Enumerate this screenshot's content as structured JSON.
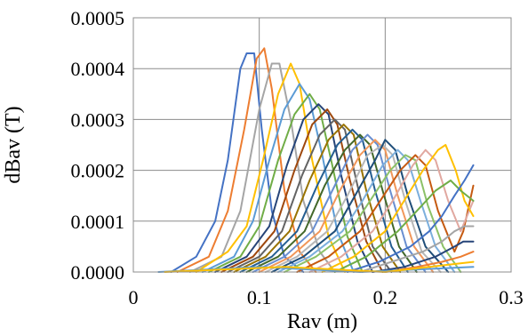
{
  "chart_data": {
    "type": "line",
    "title": "",
    "xlabel": "Rav (m)",
    "ylabel": "dBav (T)",
    "xlim": [
      0,
      0.3
    ],
    "ylim": [
      0,
      0.0005
    ],
    "x_ticks": [
      0,
      0.1,
      0.2,
      0.3
    ],
    "x_tick_labels": [
      "0",
      "0.1",
      "0.2",
      "0.3"
    ],
    "y_ticks": [
      0,
      0.0001,
      0.0002,
      0.0003,
      0.0004,
      0.0005
    ],
    "y_tick_labels": [
      "0.0000",
      "0.0001",
      "0.0002",
      "0.0003",
      "0.0004",
      "0.0005"
    ],
    "grid": true,
    "legend": false,
    "series": [
      {
        "color": "#4472C4",
        "points": [
          [
            0.03,
            0.0
          ],
          [
            0.05,
            3e-05
          ],
          [
            0.065,
            0.0001
          ],
          [
            0.075,
            0.00022
          ],
          [
            0.085,
            0.0004
          ],
          [
            0.09,
            0.00043
          ],
          [
            0.096,
            0.00043
          ],
          [
            0.102,
            0.00028
          ],
          [
            0.11,
            0.00012
          ],
          [
            0.12,
            3e-05
          ],
          [
            0.135,
            0.0
          ]
        ]
      },
      {
        "color": "#ED7D31",
        "points": [
          [
            0.035,
            0.0
          ],
          [
            0.06,
            3e-05
          ],
          [
            0.075,
            0.00012
          ],
          [
            0.088,
            0.00028
          ],
          [
            0.098,
            0.00042
          ],
          [
            0.104,
            0.00044
          ],
          [
            0.11,
            0.00036
          ],
          [
            0.12,
            0.00016
          ],
          [
            0.132,
            4e-05
          ],
          [
            0.145,
            0.0
          ]
        ]
      },
      {
        "color": "#A5A5A5",
        "points": [
          [
            0.045,
            0.0
          ],
          [
            0.07,
            3e-05
          ],
          [
            0.085,
            0.00012
          ],
          [
            0.1,
            0.00032
          ],
          [
            0.11,
            0.00041
          ],
          [
            0.116,
            0.00041
          ],
          [
            0.125,
            0.0003
          ],
          [
            0.135,
            0.00014
          ],
          [
            0.148,
            4e-05
          ],
          [
            0.16,
            0.0
          ]
        ]
      },
      {
        "color": "#FFC000",
        "points": [
          [
            0.05,
            0.0
          ],
          [
            0.075,
            4e-05
          ],
          [
            0.09,
            9e-05
          ],
          [
            0.103,
            0.00022
          ],
          [
            0.115,
            0.00035
          ],
          [
            0.125,
            0.00041
          ],
          [
            0.132,
            0.00037
          ],
          [
            0.142,
            0.00022
          ],
          [
            0.155,
            7e-05
          ],
          [
            0.168,
            0.0
          ]
        ]
      },
      {
        "color": "#5B9BD5",
        "points": [
          [
            0.055,
            0.0
          ],
          [
            0.08,
            3e-05
          ],
          [
            0.095,
            0.0001
          ],
          [
            0.108,
            0.00022
          ],
          [
            0.12,
            0.00032
          ],
          [
            0.132,
            0.00037
          ],
          [
            0.14,
            0.00034
          ],
          [
            0.15,
            0.00023
          ],
          [
            0.162,
            8e-05
          ],
          [
            0.175,
            0.0
          ]
        ]
      },
      {
        "color": "#70AD47",
        "points": [
          [
            0.06,
            0.0
          ],
          [
            0.085,
            3e-05
          ],
          [
            0.1,
            9e-05
          ],
          [
            0.115,
            0.00022
          ],
          [
            0.128,
            0.00031
          ],
          [
            0.14,
            0.00035
          ],
          [
            0.148,
            0.00032
          ],
          [
            0.158,
            0.00021
          ],
          [
            0.17,
            7e-05
          ],
          [
            0.182,
            0.0
          ]
        ]
      },
      {
        "color": "#264478",
        "points": [
          [
            0.065,
            0.0
          ],
          [
            0.09,
            3e-05
          ],
          [
            0.108,
            9e-05
          ],
          [
            0.122,
            0.00021
          ],
          [
            0.135,
            0.0003
          ],
          [
            0.147,
            0.00033
          ],
          [
            0.155,
            0.00031
          ],
          [
            0.165,
            0.00019
          ],
          [
            0.178,
            6e-05
          ],
          [
            0.19,
            0.0
          ]
        ]
      },
      {
        "color": "#9E480E",
        "points": [
          [
            0.07,
            0.0
          ],
          [
            0.095,
            3e-05
          ],
          [
            0.112,
            8e-05
          ],
          [
            0.128,
            0.0002
          ],
          [
            0.142,
            0.00029
          ],
          [
            0.154,
            0.00032
          ],
          [
            0.162,
            0.00029
          ],
          [
            0.172,
            0.00018
          ],
          [
            0.185,
            6e-05
          ],
          [
            0.198,
            0.0
          ]
        ]
      },
      {
        "color": "#636363",
        "points": [
          [
            0.075,
            0.0
          ],
          [
            0.1,
            3e-05
          ],
          [
            0.118,
            8e-05
          ],
          [
            0.134,
            0.00019
          ],
          [
            0.148,
            0.00027
          ],
          [
            0.16,
            0.0003
          ],
          [
            0.168,
            0.00028
          ],
          [
            0.178,
            0.00017
          ],
          [
            0.19,
            5e-05
          ],
          [
            0.205,
            0.0
          ]
        ]
      },
      {
        "color": "#997300",
        "points": [
          [
            0.08,
            0.0
          ],
          [
            0.105,
            3e-05
          ],
          [
            0.124,
            8e-05
          ],
          [
            0.14,
            0.00018
          ],
          [
            0.155,
            0.00026
          ],
          [
            0.167,
            0.00029
          ],
          [
            0.175,
            0.00027
          ],
          [
            0.185,
            0.00016
          ],
          [
            0.198,
            5e-05
          ],
          [
            0.212,
            0.0
          ]
        ]
      },
      {
        "color": "#255E91",
        "points": [
          [
            0.085,
            0.0
          ],
          [
            0.11,
            3e-05
          ],
          [
            0.13,
            8e-05
          ],
          [
            0.146,
            0.00017
          ],
          [
            0.162,
            0.00025
          ],
          [
            0.174,
            0.00028
          ],
          [
            0.182,
            0.00026
          ],
          [
            0.192,
            0.00016
          ],
          [
            0.205,
            5e-05
          ],
          [
            0.218,
            0.0
          ]
        ]
      },
      {
        "color": "#43682B",
        "points": [
          [
            0.09,
            0.0
          ],
          [
            0.115,
            3e-05
          ],
          [
            0.136,
            8e-05
          ],
          [
            0.152,
            0.00017
          ],
          [
            0.168,
            0.00024
          ],
          [
            0.18,
            0.00027
          ],
          [
            0.188,
            0.00025
          ],
          [
            0.198,
            0.00016
          ],
          [
            0.211,
            5e-05
          ],
          [
            0.225,
            0.0
          ]
        ]
      },
      {
        "color": "#698ED0",
        "points": [
          [
            0.095,
            0.0
          ],
          [
            0.12,
            3e-05
          ],
          [
            0.142,
            8e-05
          ],
          [
            0.158,
            0.00016
          ],
          [
            0.174,
            0.00024
          ],
          [
            0.186,
            0.00027
          ],
          [
            0.194,
            0.00025
          ],
          [
            0.204,
            0.00016
          ],
          [
            0.217,
            5e-05
          ],
          [
            0.232,
            0.0
          ]
        ]
      },
      {
        "color": "#F1975A",
        "points": [
          [
            0.1,
            0.0
          ],
          [
            0.125,
            3e-05
          ],
          [
            0.148,
            8e-05
          ],
          [
            0.164,
            0.00016
          ],
          [
            0.18,
            0.00023
          ],
          [
            0.192,
            0.00026
          ],
          [
            0.2,
            0.00024
          ],
          [
            0.21,
            0.00015
          ],
          [
            0.223,
            5e-05
          ],
          [
            0.238,
            0.0
          ]
        ]
      },
      {
        "color": "#B7B7B7",
        "points": [
          [
            0.105,
            0.0
          ],
          [
            0.13,
            3e-05
          ],
          [
            0.154,
            8e-05
          ],
          [
            0.17,
            0.00015
          ],
          [
            0.186,
            0.00023
          ],
          [
            0.198,
            0.00025
          ],
          [
            0.206,
            0.00023
          ],
          [
            0.216,
            0.00014
          ],
          [
            0.229,
            4e-05
          ],
          [
            0.244,
            0.0
          ]
        ]
      },
      {
        "color": "#1F4E79",
        "points": [
          [
            0.11,
            0.0
          ],
          [
            0.135,
            3e-05
          ],
          [
            0.16,
            8e-05
          ],
          [
            0.176,
            0.00015
          ],
          [
            0.192,
            0.00022
          ],
          [
            0.2,
            0.00026
          ],
          [
            0.208,
            0.00024
          ],
          [
            0.218,
            0.00015
          ],
          [
            0.232,
            5e-05
          ],
          [
            0.25,
            0.0
          ]
        ]
      },
      {
        "color": "#7CAFDD",
        "points": [
          [
            0.115,
            0.0
          ],
          [
            0.14,
            3e-05
          ],
          [
            0.166,
            8e-05
          ],
          [
            0.182,
            0.00014
          ],
          [
            0.198,
            0.00021
          ],
          [
            0.21,
            0.00024
          ],
          [
            0.218,
            0.00022
          ],
          [
            0.228,
            0.00014
          ],
          [
            0.24,
            5e-05
          ],
          [
            0.255,
            0.0
          ]
        ]
      },
      {
        "color": "#8CC168",
        "points": [
          [
            0.12,
            0.0
          ],
          [
            0.145,
            3e-05
          ],
          [
            0.172,
            8e-05
          ],
          [
            0.188,
            0.00014
          ],
          [
            0.204,
            0.0002
          ],
          [
            0.216,
            0.00023
          ],
          [
            0.224,
            0.00022
          ],
          [
            0.234,
            0.00013
          ],
          [
            0.246,
            5e-05
          ],
          [
            0.26,
            0.0
          ]
        ]
      },
      {
        "color": "#C55A11",
        "points": [
          [
            0.13,
            0.0
          ],
          [
            0.155,
            3e-05
          ],
          [
            0.18,
            8e-05
          ],
          [
            0.196,
            0.00014
          ],
          [
            0.212,
            0.0002
          ],
          [
            0.224,
            0.00023
          ],
          [
            0.232,
            0.00021
          ],
          [
            0.242,
            0.00012
          ],
          [
            0.255,
            4e-05
          ],
          [
            0.262,
            8e-05
          ],
          [
            0.27,
            0.00017
          ]
        ]
      },
      {
        "color": "#E1A8A0",
        "points": [
          [
            0.14,
            0.0
          ],
          [
            0.165,
            3e-05
          ],
          [
            0.19,
            8e-05
          ],
          [
            0.206,
            0.00014
          ],
          [
            0.222,
            0.00021
          ],
          [
            0.232,
            0.00024
          ],
          [
            0.24,
            0.00022
          ],
          [
            0.25,
            0.00014
          ],
          [
            0.26,
            8e-05
          ],
          [
            0.27,
            0.00014
          ]
        ]
      },
      {
        "color": "#FFC000",
        "points": [
          [
            0.15,
            0.0
          ],
          [
            0.175,
            3e-05
          ],
          [
            0.2,
            8e-05
          ],
          [
            0.215,
            0.00014
          ],
          [
            0.23,
            0.0002
          ],
          [
            0.242,
            0.00024
          ],
          [
            0.248,
            0.00025
          ],
          [
            0.256,
            0.0002
          ],
          [
            0.263,
            0.00014
          ],
          [
            0.27,
            0.00011
          ]
        ]
      },
      {
        "color": "#70AD47",
        "points": [
          [
            0.16,
            0.0
          ],
          [
            0.185,
            3e-05
          ],
          [
            0.21,
            8e-05
          ],
          [
            0.225,
            0.00012
          ],
          [
            0.24,
            0.00016
          ],
          [
            0.252,
            0.00018
          ],
          [
            0.26,
            0.00016
          ],
          [
            0.27,
            0.00014
          ]
        ]
      },
      {
        "color": "#4472C4",
        "points": [
          [
            0.17,
            0.0
          ],
          [
            0.195,
            2e-05
          ],
          [
            0.22,
            5e-05
          ],
          [
            0.235,
            8e-05
          ],
          [
            0.245,
            0.00011
          ],
          [
            0.255,
            0.00015
          ],
          [
            0.263,
            0.00018
          ],
          [
            0.27,
            0.00021
          ]
        ]
      },
      {
        "color": "#A5A5A5",
        "points": [
          [
            0.18,
            0.0
          ],
          [
            0.205,
            2e-05
          ],
          [
            0.23,
            4e-05
          ],
          [
            0.245,
            6e-05
          ],
          [
            0.255,
            8e-05
          ],
          [
            0.263,
            9e-05
          ],
          [
            0.27,
            9e-05
          ]
        ]
      },
      {
        "color": "#264478",
        "points": [
          [
            0.19,
            0.0
          ],
          [
            0.215,
            1e-05
          ],
          [
            0.24,
            3e-05
          ],
          [
            0.255,
            5e-05
          ],
          [
            0.262,
            6e-05
          ],
          [
            0.27,
            6e-05
          ]
        ]
      },
      {
        "color": "#ED7D31",
        "points": [
          [
            0.2,
            0.0
          ],
          [
            0.225,
            1e-05
          ],
          [
            0.245,
            2e-05
          ],
          [
            0.26,
            3e-05
          ],
          [
            0.27,
            4e-05
          ]
        ]
      },
      {
        "color": "#5B9BD5",
        "points": [
          [
            0.02,
            0.0
          ],
          [
            0.1,
            1e-05
          ],
          [
            0.18,
            0.0
          ],
          [
            0.27,
            1e-05
          ]
        ]
      },
      {
        "color": "#FFC000",
        "points": [
          [
            0.025,
            0.0
          ],
          [
            0.12,
            1e-05
          ],
          [
            0.2,
            0.0
          ],
          [
            0.27,
            2e-05
          ]
        ]
      }
    ]
  }
}
